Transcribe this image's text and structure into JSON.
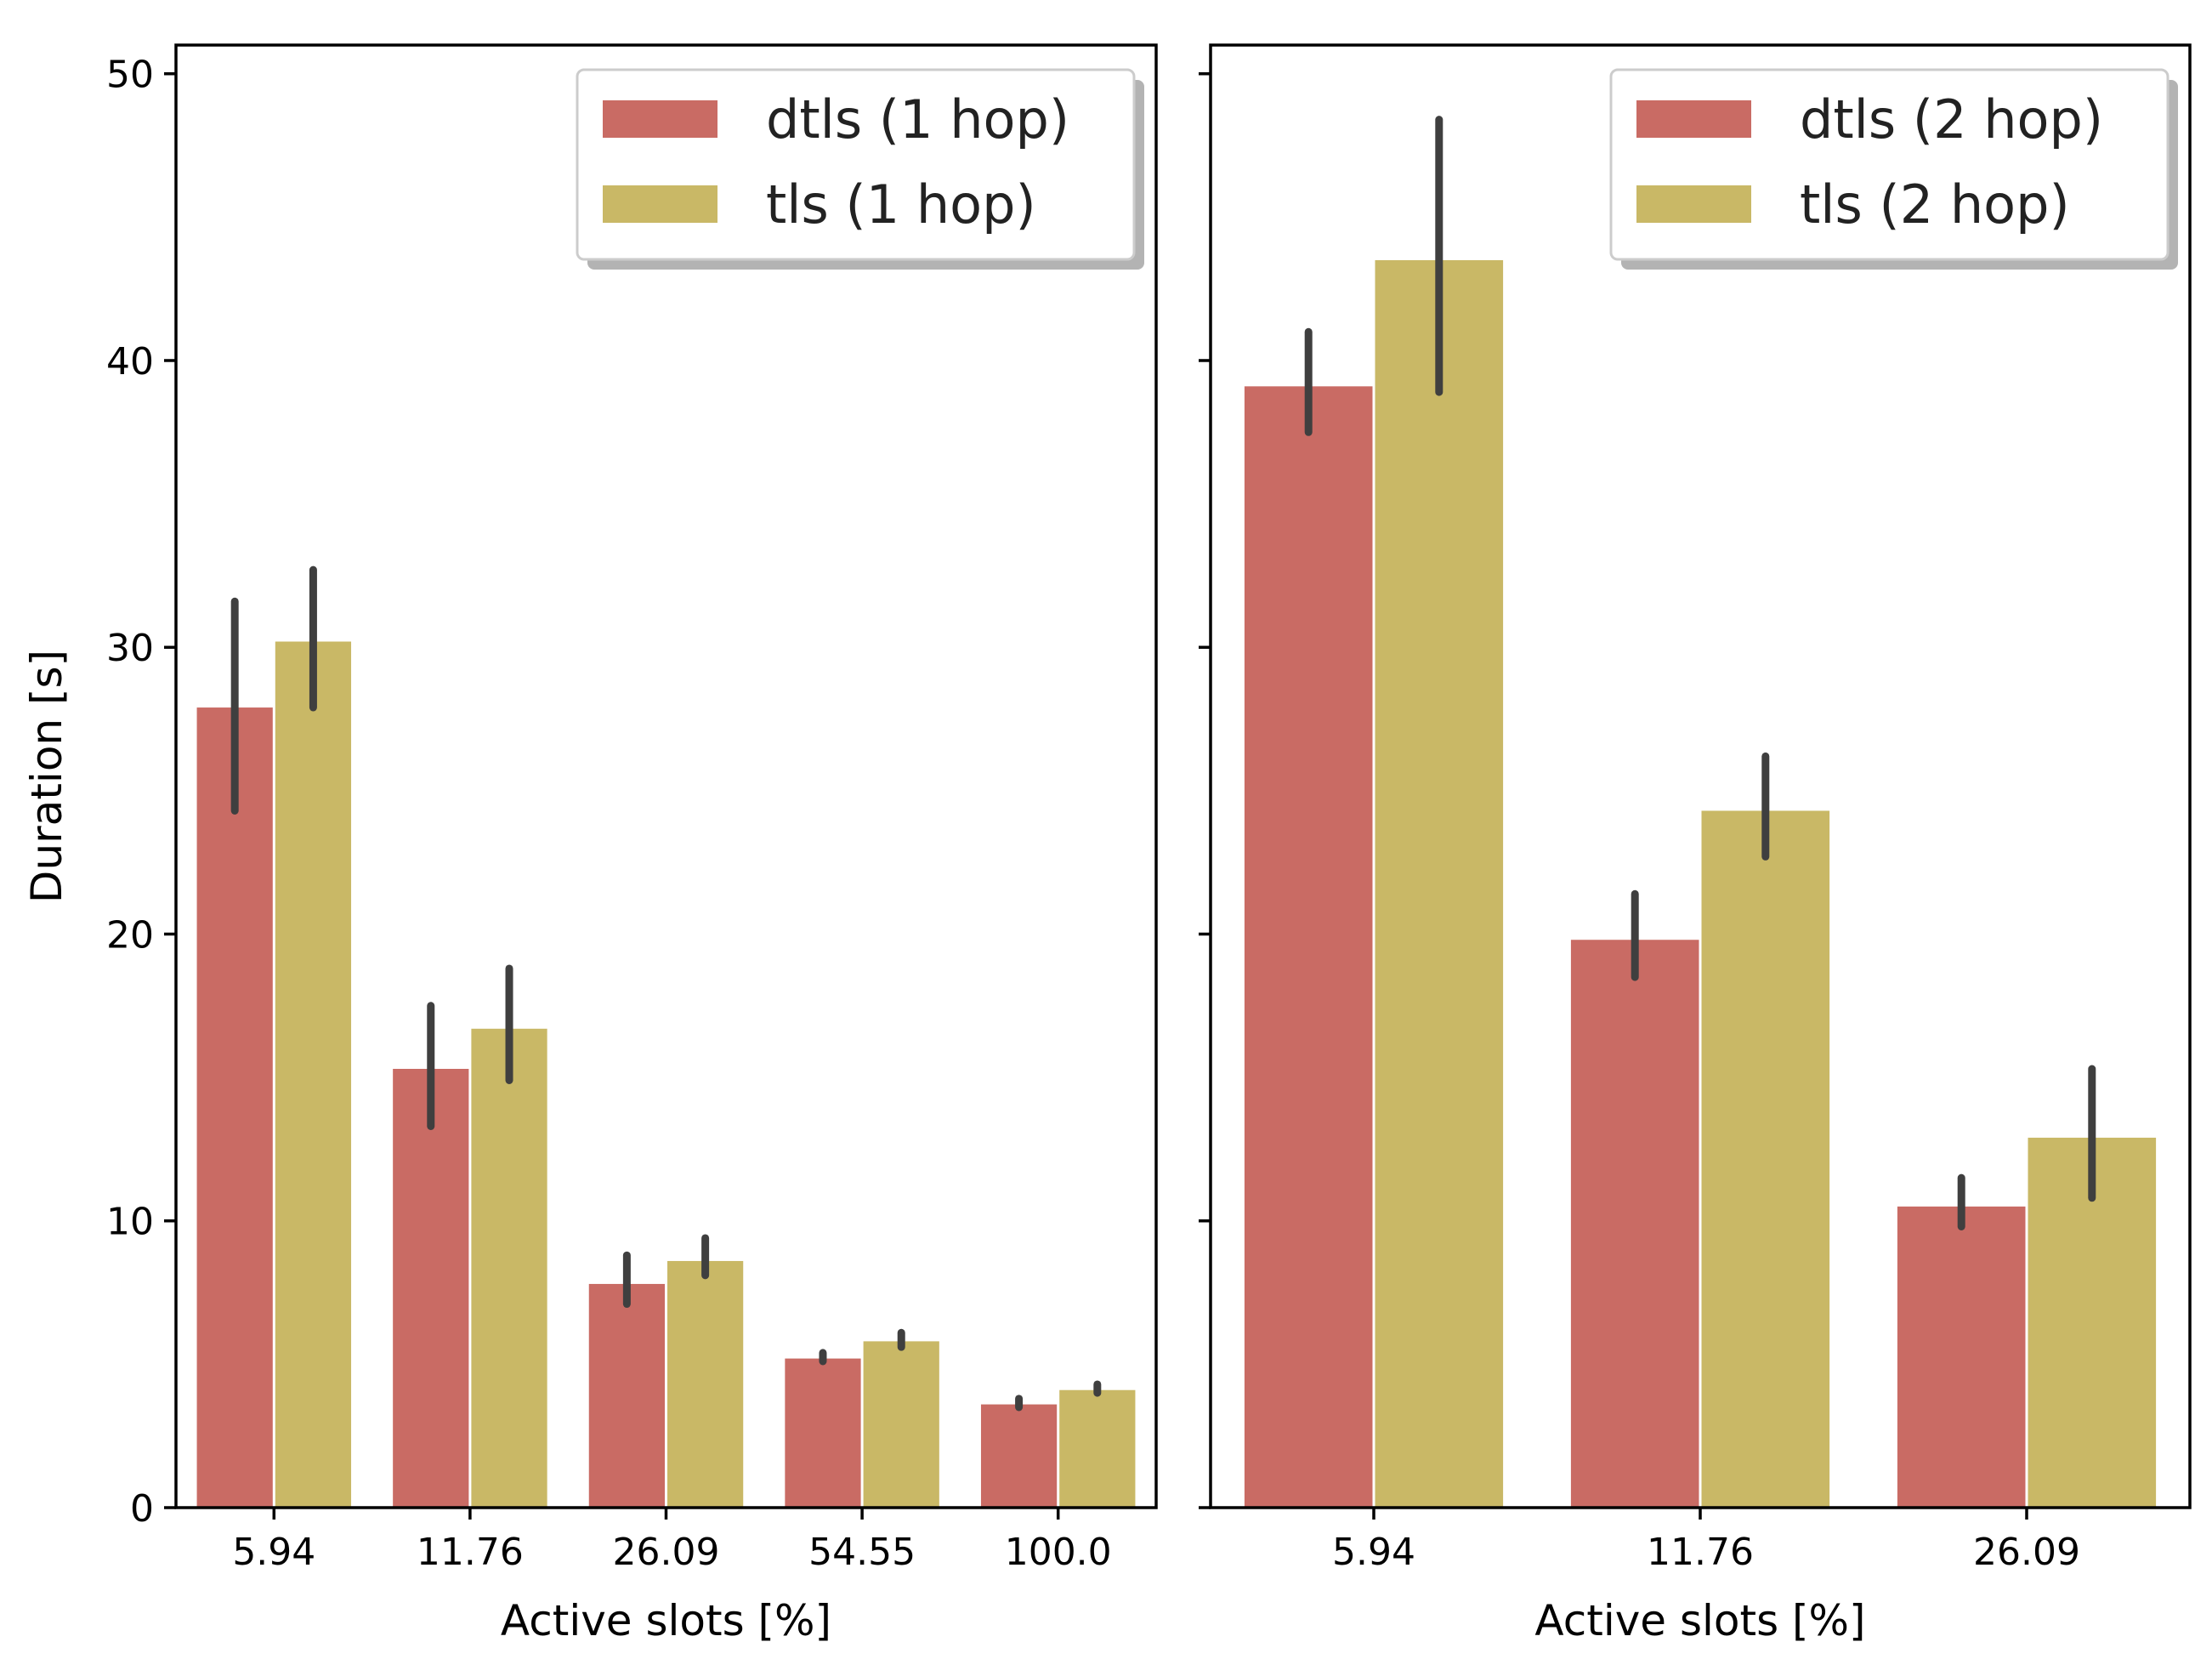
{
  "chart_data": [
    {
      "type": "bar",
      "categories": [
        "5.94",
        "11.76",
        "26.09",
        "54.55",
        "100.0"
      ],
      "series": [
        {
          "name": "dtls (1 hop)",
          "color": "#c96b64",
          "values": [
            27.9,
            15.3,
            7.8,
            5.2,
            3.6
          ],
          "err_low": [
            24.3,
            13.3,
            7.1,
            5.1,
            3.5
          ],
          "err_high": [
            31.6,
            17.5,
            8.8,
            5.4,
            3.8
          ]
        },
        {
          "name": "tls (1 hop)",
          "color": "#c9b866",
          "values": [
            30.2,
            16.7,
            8.6,
            5.8,
            4.1
          ],
          "err_low": [
            27.9,
            14.9,
            8.1,
            5.6,
            4.0
          ],
          "err_high": [
            32.7,
            18.8,
            9.4,
            6.1,
            4.3
          ]
        }
      ],
      "xlabel": "Active slots [%]",
      "ylabel": "Duration [s]",
      "ylim": [
        0,
        51
      ],
      "yticks": [
        "0",
        "10",
        "20",
        "30",
        "40",
        "50"
      ],
      "legend_position": "top-right",
      "grid": false
    },
    {
      "type": "bar",
      "categories": [
        "5.94",
        "11.76",
        "26.09"
      ],
      "series": [
        {
          "name": "dtls (2 hop)",
          "color": "#c96b64",
          "values": [
            39.1,
            19.8,
            10.5
          ],
          "err_low": [
            37.5,
            18.5,
            9.8
          ],
          "err_high": [
            41.0,
            21.4,
            11.5
          ]
        },
        {
          "name": "tls (2 hop)",
          "color": "#c9b866",
          "values": [
            43.5,
            24.3,
            12.9
          ],
          "err_low": [
            38.9,
            22.7,
            10.8
          ],
          "err_high": [
            48.4,
            26.2,
            15.3
          ]
        }
      ],
      "xlabel": "Active slots [%]",
      "ylabel": "",
      "ylim": [
        0,
        51
      ],
      "yticks": [
        "0",
        "10",
        "20",
        "30",
        "40",
        "50"
      ],
      "legend_position": "top-right",
      "grid": false
    }
  ],
  "colors": {
    "error_bar": "#3f3f3f",
    "axis": "#000000",
    "legend_shadow": "#b3b3b3",
    "legend_border": "#cccccc"
  }
}
